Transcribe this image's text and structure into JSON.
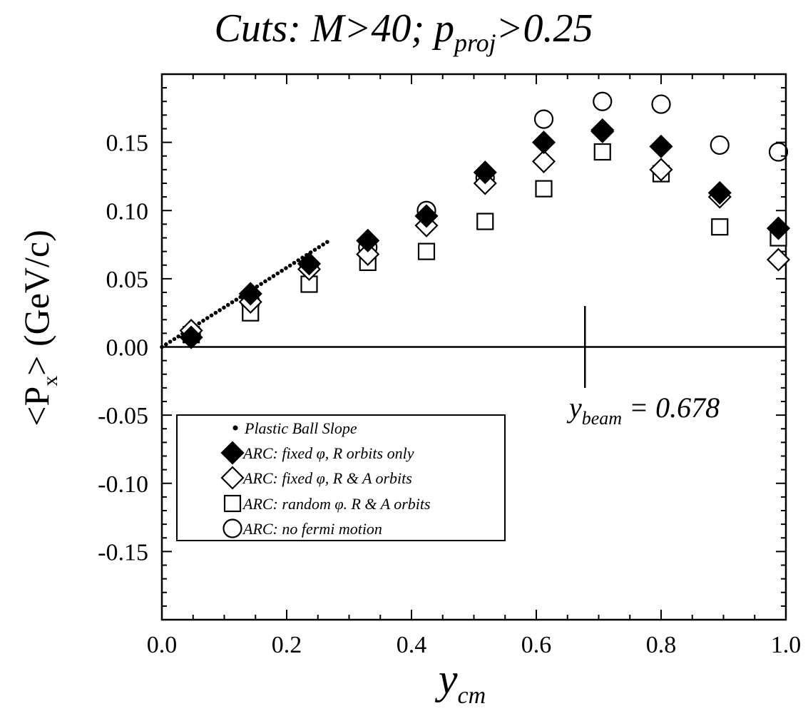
{
  "chart_data": {
    "type": "scatter",
    "title": {
      "main": "Cuts:  M>40; p",
      "sub": "proj",
      "rest": ">0.25"
    },
    "xlabel": {
      "main": "y",
      "sub": "cm"
    },
    "ylabel": {
      "pre": "<P",
      "sub": "x",
      "post": "> (GeV/c)"
    },
    "xlim": [
      0.0,
      1.0
    ],
    "ylim": [
      -0.2,
      0.2
    ],
    "x_ticks": [
      0.0,
      0.2,
      0.4,
      0.6,
      0.8,
      1.0
    ],
    "x_tick_labels": [
      "0.0",
      "0.2",
      "0.4",
      "0.6",
      "0.8",
      "1.0"
    ],
    "y_ticks": [
      0.15,
      0.1,
      0.05,
      0.0,
      -0.05,
      -0.1,
      -0.15
    ],
    "y_tick_labels": [
      "0.15",
      "0.10",
      "0.05",
      "0.00",
      "-0.05",
      "-0.10",
      "-0.15"
    ],
    "grid": false,
    "legend_position": "lower-left",
    "zero_line": 0.0,
    "annotation": {
      "y_beam_x": 0.678,
      "y_beam_range": [
        -0.03,
        0.03
      ],
      "label_main": "y",
      "label_sub": "beam",
      "label_rest": " = 0.678"
    },
    "slope_line": {
      "name": "Plastic Ball Slope",
      "x_start": 0.0,
      "x_end": 0.265,
      "y_start": 0.0,
      "y_end": 0.077
    },
    "series": [
      {
        "name": "ARC: fixed φ, R orbits only",
        "marker": "diamond-filled",
        "x": [
          0.047,
          0.142,
          0.236,
          0.33,
          0.424,
          0.518,
          0.612,
          0.706,
          0.8,
          0.894,
          0.988
        ],
        "y": [
          0.007,
          0.039,
          0.061,
          0.078,
          0.096,
          0.128,
          0.15,
          0.159,
          0.147,
          0.113,
          0.087
        ]
      },
      {
        "name": "ARC: fixed φ, R & A orbits",
        "marker": "diamond-open",
        "x": [
          0.047,
          0.142,
          0.236,
          0.33,
          0.424,
          0.518,
          0.612,
          0.706,
          0.8,
          0.894,
          0.988
        ],
        "y": [
          0.012,
          0.033,
          0.057,
          0.068,
          0.089,
          0.12,
          0.136,
          0.158,
          0.13,
          0.11,
          0.064
        ]
      },
      {
        "name": "ARC: random φ. R & A orbits",
        "marker": "square-open",
        "x": [
          0.047,
          0.142,
          0.236,
          0.33,
          0.424,
          0.518,
          0.612,
          0.706,
          0.8,
          0.894,
          0.988
        ],
        "y": [
          0.009,
          0.025,
          0.046,
          0.062,
          0.07,
          0.092,
          0.116,
          0.143,
          0.127,
          0.088,
          0.08
        ]
      },
      {
        "name": "ARC: no fermi motion",
        "marker": "circle-open",
        "x": [
          0.047,
          0.142,
          0.236,
          0.33,
          0.424,
          0.518,
          0.612,
          0.706,
          0.8,
          0.894,
          0.988
        ],
        "y": [
          0.009,
          0.033,
          0.059,
          0.073,
          0.1,
          0.124,
          0.167,
          0.18,
          0.178,
          0.148,
          0.143
        ]
      }
    ],
    "legend": {
      "entries": [
        "Plastic Ball Slope",
        "ARC: fixed φ, R orbits only",
        "ARC: fixed φ, R & A orbits",
        "ARC: random φ. R & A orbits",
        "ARC: no fermi motion"
      ]
    }
  }
}
